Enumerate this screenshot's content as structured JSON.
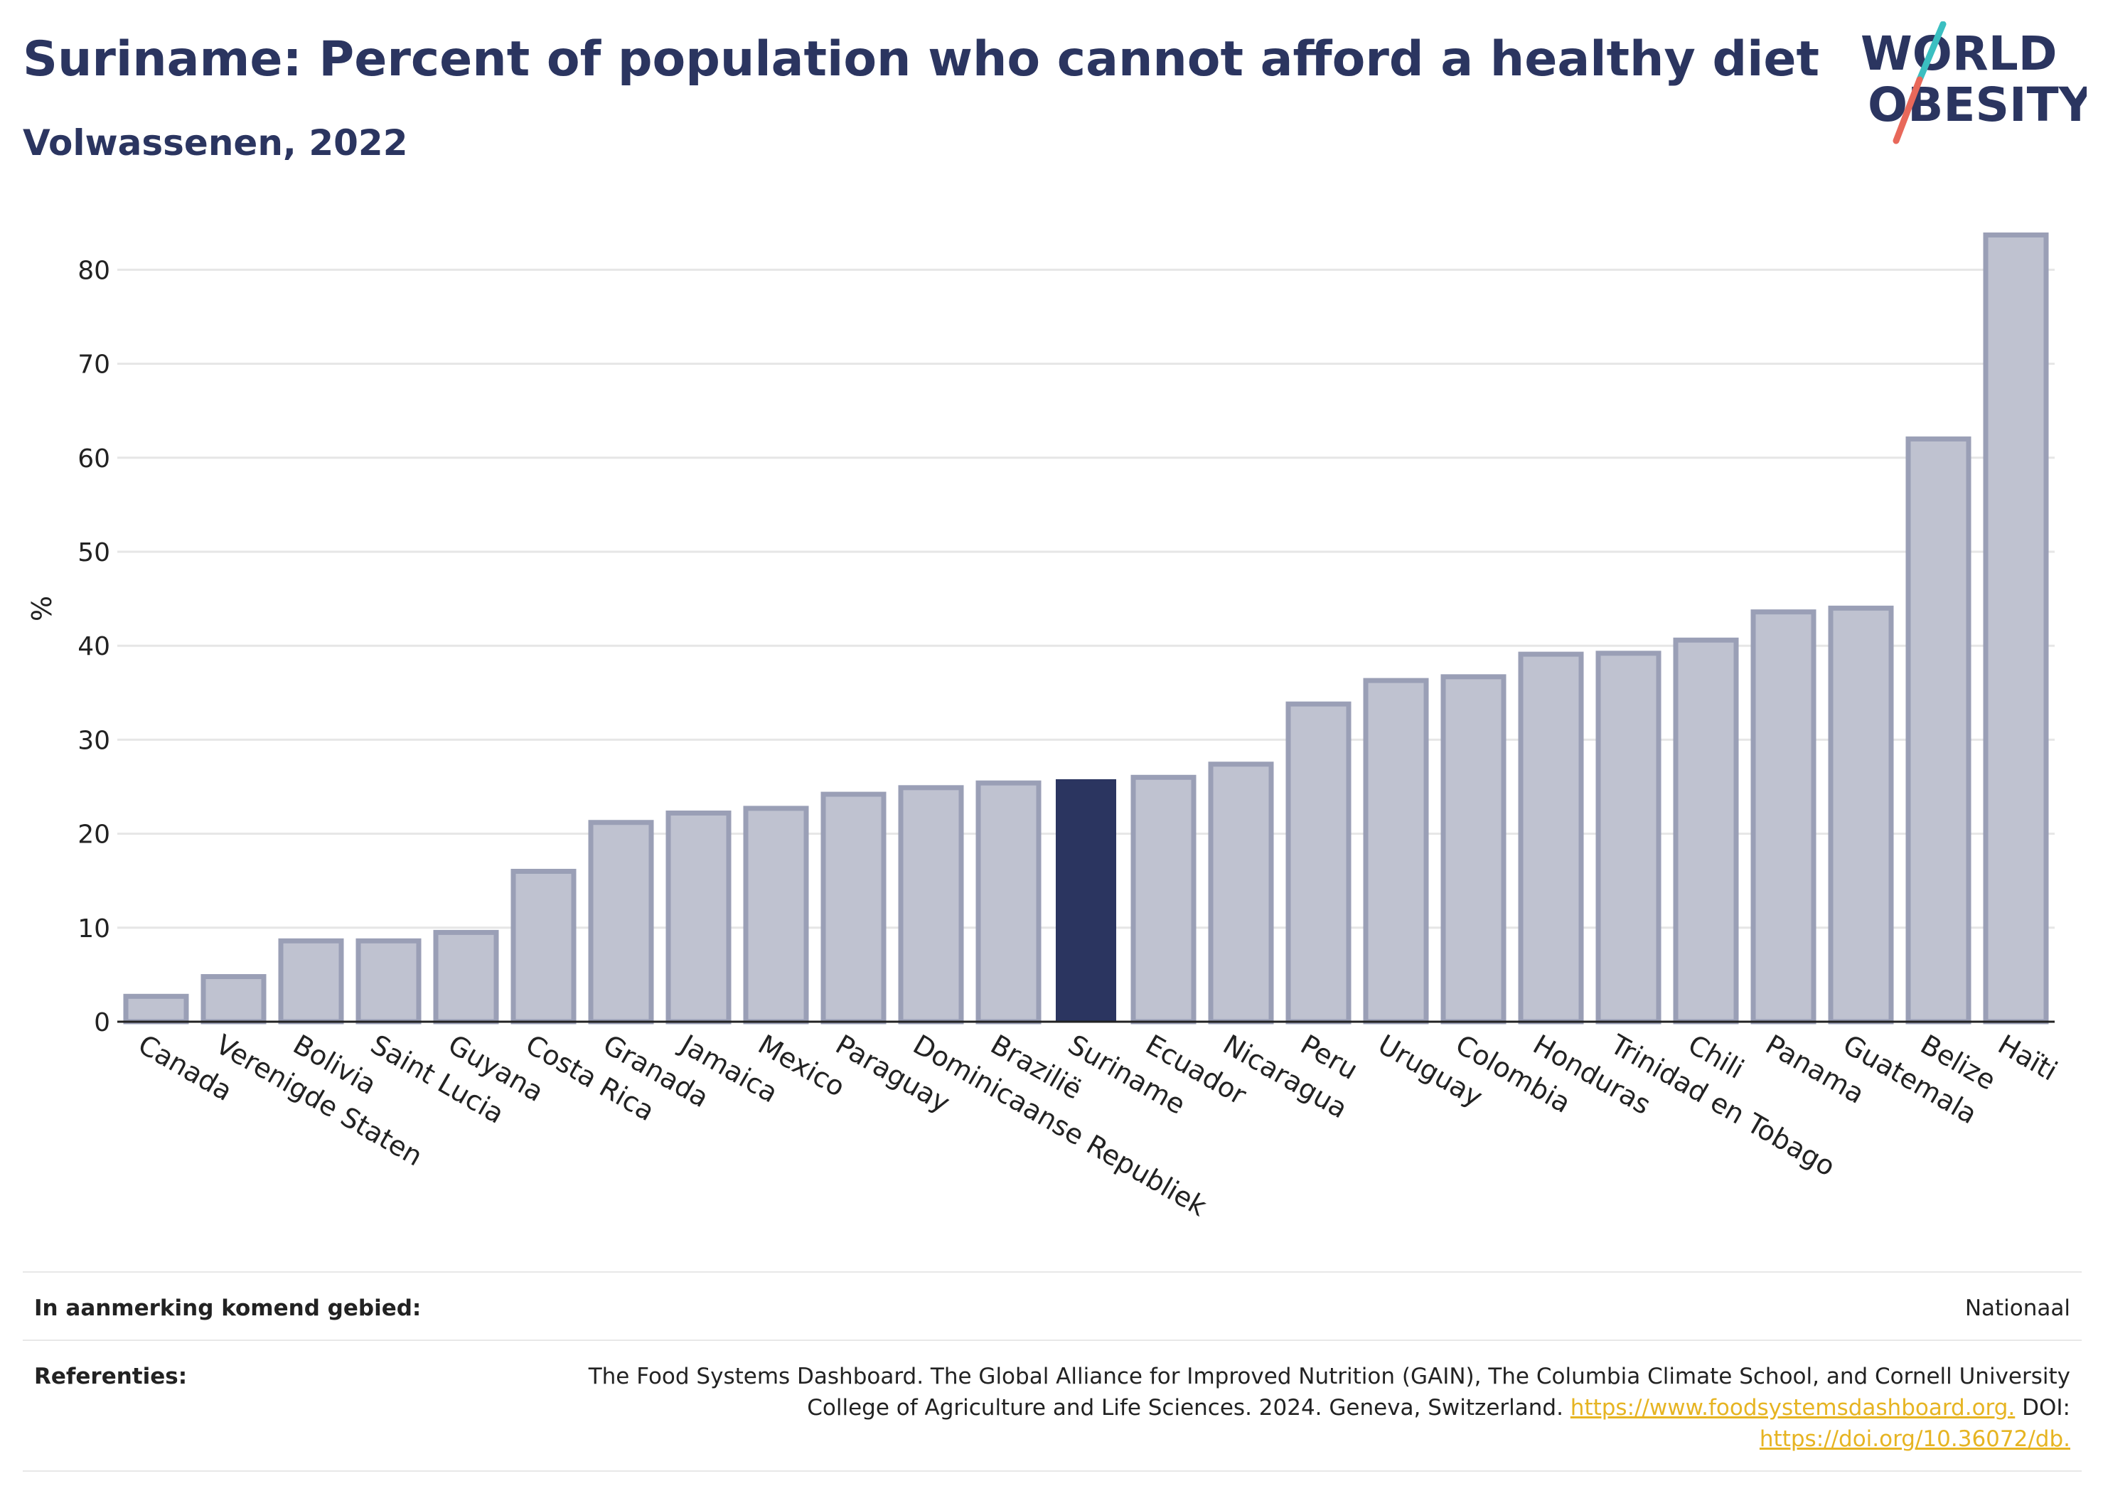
{
  "header": {
    "title": "Suriname: Percent of population who cannot afford a healthy diet",
    "subtitle": "Volwassenen, 2022"
  },
  "logo": {
    "line1": "WORLD",
    "line2": "OBESITY",
    "accent_teal": "#3bbfc1",
    "accent_red": "#e8685a"
  },
  "colors": {
    "bar": "#bfc2d0",
    "bar_border": "#9a9fb6",
    "highlight": "#2b3560",
    "text": "#2b3560"
  },
  "chart_data": {
    "type": "bar",
    "title": "Suriname: Percent of population who cannot afford a healthy diet",
    "subtitle": "Volwassenen, 2022",
    "ylabel": "%",
    "xlabel": "",
    "ylim": [
      0,
      85
    ],
    "yticks": [
      0,
      10,
      20,
      30,
      40,
      50,
      60,
      70,
      80
    ],
    "grid": true,
    "highlight": "Suriname",
    "categories": [
      "Canada",
      "Verenigde Staten",
      "Bolivia",
      "Saint Lucia",
      "Guyana",
      "Costa Rica",
      "Granada",
      "Jamaica",
      "Mexico",
      "Paraguay",
      "Dominicaanse Republiek",
      "Brazilië",
      "Suriname",
      "Ecuador",
      "Nicaragua",
      "Peru",
      "Uruguay",
      "Colombia",
      "Honduras",
      "Trinidad en Tobago",
      "Chili",
      "Panama",
      "Guatemala",
      "Belize",
      "Haïti"
    ],
    "values": [
      2.7,
      4.8,
      8.6,
      8.6,
      9.5,
      16.0,
      21.2,
      22.2,
      22.7,
      24.2,
      24.9,
      25.4,
      25.8,
      26.0,
      27.4,
      33.8,
      36.3,
      36.7,
      39.1,
      39.2,
      40.6,
      43.6,
      44.0,
      62.0,
      83.7
    ]
  },
  "footer": {
    "area_label": "In aanmerking komend gebied:",
    "area_value": "Nationaal",
    "ref_label": "Referenties:",
    "ref_text_1": "The Food Systems Dashboard. The Global Alliance for Improved Nutrition (GAIN), The Columbia Climate School, and Cornell University",
    "ref_text_2": "College of Agriculture and Life Sciences. 2024. Geneva, Switzerland.",
    "ref_link_1": "https://www.foodsystemsdashboard.org.",
    "ref_text_3": "DOI:",
    "ref_link_2": "https://doi.org/10.36072/db."
  }
}
